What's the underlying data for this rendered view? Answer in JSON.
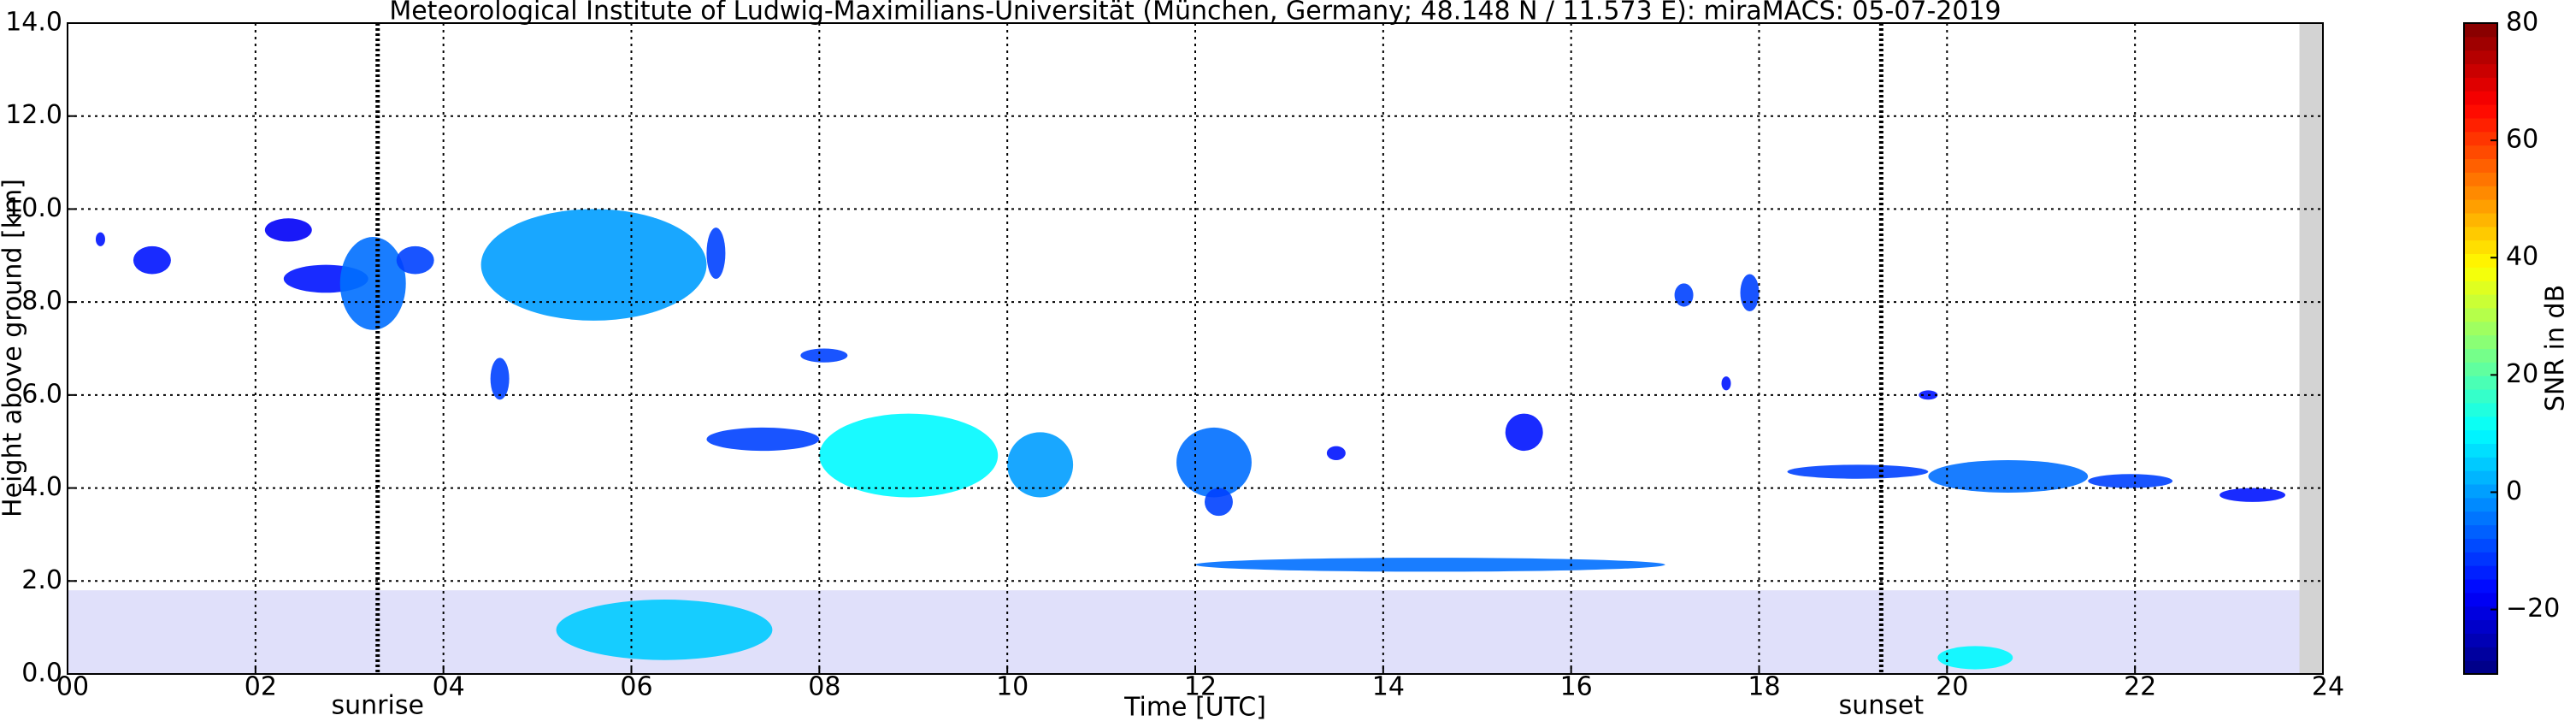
{
  "chart_data": {
    "type": "time-height",
    "title": "Meteorological Institute of Ludwig-Maximilians-Universität (München, Germany; 48.148 N / 11.573 E):    miraMACS: 05-07-2019",
    "xlabel": "Time [UTC]",
    "ylabel": "Height above ground [km]",
    "colorbar_label": "SNR in dB",
    "xlim": [
      0,
      24
    ],
    "xticks": [
      {
        "value": 0,
        "label": "00"
      },
      {
        "value": 2,
        "label": "02"
      },
      {
        "value": 4,
        "label": "04"
      },
      {
        "value": 6,
        "label": "06"
      },
      {
        "value": 8,
        "label": "08"
      },
      {
        "value": 10,
        "label": "10"
      },
      {
        "value": 12,
        "label": "12"
      },
      {
        "value": 14,
        "label": "14"
      },
      {
        "value": 16,
        "label": "16"
      },
      {
        "value": 18,
        "label": "18"
      },
      {
        "value": 20,
        "label": "20"
      },
      {
        "value": 22,
        "label": "22"
      },
      {
        "value": 24,
        "label": "24"
      }
    ],
    "ylim": [
      0,
      14
    ],
    "yticks": [
      {
        "value": 0,
        "label": "0.0"
      },
      {
        "value": 2,
        "label": "2.0"
      },
      {
        "value": 4,
        "label": "4.0"
      },
      {
        "value": 6,
        "label": "6.0"
      },
      {
        "value": 8,
        "label": "8.0"
      },
      {
        "value": 10,
        "label": "10.0"
      },
      {
        "value": 12,
        "label": "12.0"
      },
      {
        "value": 14,
        "label": "14.0"
      }
    ],
    "clim": [
      -31,
      80
    ],
    "cticks": [
      {
        "value": -20,
        "label": "−20"
      },
      0,
      20,
      40,
      60,
      80
    ],
    "colormap": "jet",
    "grid": true,
    "markers": [
      {
        "x": 3.3,
        "label": "sunrise"
      },
      {
        "x": 19.3,
        "label": "sunset"
      }
    ],
    "missing": [
      23.75,
      24
    ],
    "echoes": [
      {
        "t": [
          0,
          23.75
        ],
        "h": [
          0,
          1.8
        ],
        "snr": -22
      },
      {
        "t": [
          5.2,
          7.5
        ],
        "h": [
          0.3,
          1.6
        ],
        "snr": 5
      },
      {
        "t": [
          19.9,
          20.7
        ],
        "h": [
          0.1,
          0.6
        ],
        "snr": 10
      },
      {
        "t": [
          12,
          17
        ],
        "h": [
          2.2,
          2.5
        ],
        "snr": -5
      },
      {
        "t": [
          0.3,
          0.4
        ],
        "h": [
          9.2,
          9.5
        ],
        "snr": -15
      },
      {
        "t": [
          0.7,
          1.1
        ],
        "h": [
          8.6,
          9.2
        ],
        "snr": -15
      },
      {
        "t": [
          2.1,
          2.6
        ],
        "h": [
          9.3,
          9.8
        ],
        "snr": -18
      },
      {
        "t": [
          2.3,
          3.2
        ],
        "h": [
          8.2,
          8.8
        ],
        "snr": -15
      },
      {
        "t": [
          2.9,
          3.6
        ],
        "h": [
          7.4,
          9.4
        ],
        "snr": -5
      },
      {
        "t": [
          3.5,
          3.9
        ],
        "h": [
          8.6,
          9.2
        ],
        "snr": -10
      },
      {
        "t": [
          4.4,
          6.8
        ],
        "h": [
          7.6,
          10
        ],
        "snr": 0
      },
      {
        "t": [
          6.8,
          7
        ],
        "h": [
          8.5,
          9.6
        ],
        "snr": -10
      },
      {
        "t": [
          4.5,
          4.7
        ],
        "h": [
          5.9,
          6.8
        ],
        "snr": -10
      },
      {
        "t": [
          7.8,
          8.3
        ],
        "h": [
          6.7,
          7
        ],
        "snr": -10
      },
      {
        "t": [
          6.8,
          8
        ],
        "h": [
          4.8,
          5.3
        ],
        "snr": -10
      },
      {
        "t": [
          8,
          9.9
        ],
        "h": [
          3.8,
          5.6
        ],
        "snr": 10
      },
      {
        "t": [
          10,
          10.7
        ],
        "h": [
          3.8,
          5.2
        ],
        "snr": 0
      },
      {
        "t": [
          11.8,
          12.6
        ],
        "h": [
          3.8,
          5.3
        ],
        "snr": -5
      },
      {
        "t": [
          12.1,
          12.4
        ],
        "h": [
          3.4,
          4
        ],
        "snr": -10
      },
      {
        "t": [
          13.4,
          13.6
        ],
        "h": [
          4.6,
          4.9
        ],
        "snr": -15
      },
      {
        "t": [
          15.3,
          15.7
        ],
        "h": [
          4.8,
          5.6
        ],
        "snr": -15
      },
      {
        "t": [
          17.1,
          17.3
        ],
        "h": [
          7.9,
          8.4
        ],
        "snr": -10
      },
      {
        "t": [
          17.8,
          18
        ],
        "h": [
          7.8,
          8.6
        ],
        "snr": -10
      },
      {
        "t": [
          17.6,
          17.7
        ],
        "h": [
          6.1,
          6.4
        ],
        "snr": -15
      },
      {
        "t": [
          19.7,
          19.9
        ],
        "h": [
          5.9,
          6.1
        ],
        "snr": -15
      },
      {
        "t": [
          18.3,
          19.8
        ],
        "h": [
          4.2,
          4.5
        ],
        "snr": -10
      },
      {
        "t": [
          19.8,
          21.5
        ],
        "h": [
          3.9,
          4.6
        ],
        "snr": -5
      },
      {
        "t": [
          21.5,
          22.4
        ],
        "h": [
          4,
          4.3
        ],
        "snr": -10
      },
      {
        "t": [
          22.9,
          23.6
        ],
        "h": [
          3.7,
          4
        ],
        "snr": -15
      }
    ]
  }
}
